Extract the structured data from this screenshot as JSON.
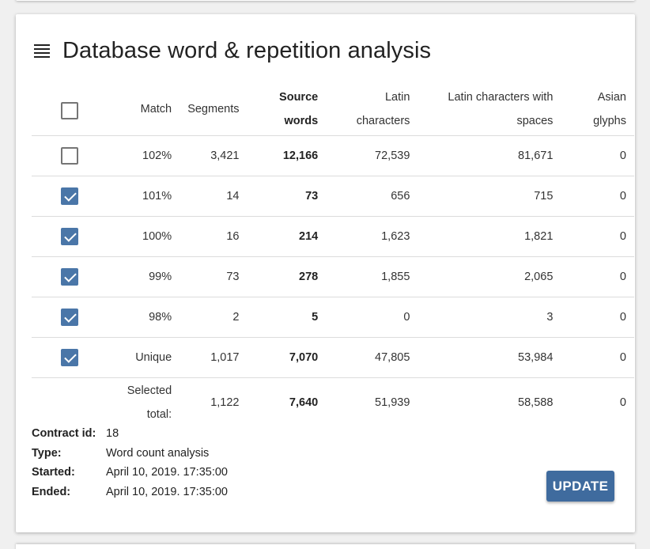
{
  "title": "Database word & repetition analysis",
  "icons": {
    "menu": "menu-lines-icon",
    "check": "checkmark-icon"
  },
  "colors": {
    "accent": "#4a76a8",
    "button": "#3f6b9e"
  },
  "table": {
    "headers": {
      "match": "Match",
      "segments": "Segments",
      "source_words_1": "Source",
      "source_words_2": "words",
      "latin_1": "Latin",
      "latin_2": "characters",
      "latin_spaces_1": "Latin characters with",
      "latin_spaces_2": "spaces",
      "asian_1": "Asian",
      "asian_2": "glyphs"
    },
    "header_checked": false,
    "rows": [
      {
        "checked": false,
        "match": "102%",
        "segments": "3,421",
        "source_words": "12,166",
        "latin": "72,539",
        "latin_spaces": "81,671",
        "asian": "0"
      },
      {
        "checked": true,
        "match": "101%",
        "segments": "14",
        "source_words": "73",
        "latin": "656",
        "latin_spaces": "715",
        "asian": "0"
      },
      {
        "checked": true,
        "match": "100%",
        "segments": "16",
        "source_words": "214",
        "latin": "1,623",
        "latin_spaces": "1,821",
        "asian": "0"
      },
      {
        "checked": true,
        "match": "99%",
        "segments": "73",
        "source_words": "278",
        "latin": "1,855",
        "latin_spaces": "2,065",
        "asian": "0"
      },
      {
        "checked": true,
        "match": "98%",
        "segments": "2",
        "source_words": "5",
        "latin": "0",
        "latin_spaces": "3",
        "asian": "0"
      },
      {
        "checked": true,
        "match": "Unique",
        "segments": "1,017",
        "source_words": "7,070",
        "latin": "47,805",
        "latin_spaces": "53,984",
        "asian": "0"
      }
    ],
    "total": {
      "label_1": "Selected",
      "label_2": "total:",
      "segments": "1,122",
      "source_words": "7,640",
      "latin": "51,939",
      "latin_spaces": "58,588",
      "asian": "0"
    }
  },
  "info": {
    "contract_label": "Contract id:",
    "contract_value": "18",
    "type_label": "Type:",
    "type_value": "Word count analysis",
    "started_label": "Started:",
    "started_value": "April 10, 2019. 17:35:00",
    "ended_label": "Ended:",
    "ended_value": "April 10, 2019. 17:35:00"
  },
  "update_label": "UPDATE"
}
